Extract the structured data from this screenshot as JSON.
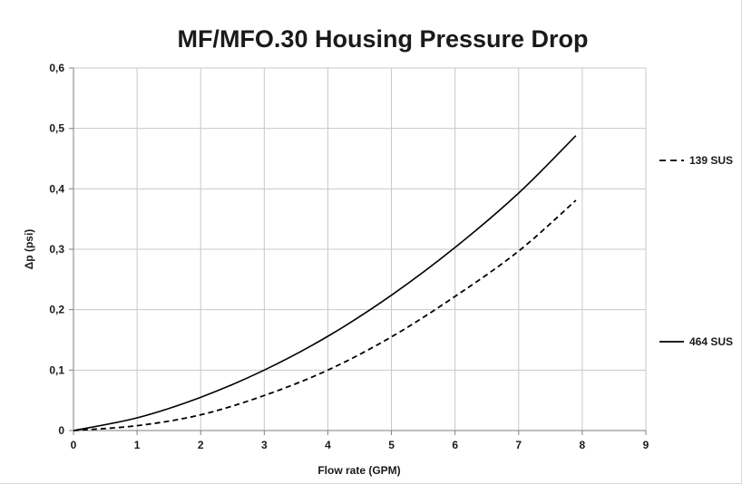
{
  "chart_data": {
    "type": "line",
    "title": "MF/MFO.30 Housing Pressure Drop",
    "xlabel": "Flow rate (GPM)",
    "ylabel": "Δp (psi)",
    "xlim": [
      0,
      9
    ],
    "ylim": [
      0,
      0.6
    ],
    "x_ticks": [
      0,
      1,
      2,
      3,
      4,
      5,
      6,
      7,
      8,
      9
    ],
    "x_tick_labels": [
      "0",
      "1",
      "2",
      "3",
      "4",
      "5",
      "6",
      "7",
      "8",
      "9"
    ],
    "y_ticks": [
      0,
      0.1,
      0.2,
      0.3,
      0.4,
      0.5,
      0.6
    ],
    "y_tick_labels": [
      "0",
      "0,1",
      "0,2",
      "0,3",
      "0,4",
      "0,5",
      "0,6"
    ],
    "grid": true,
    "legend_position": "right",
    "series": [
      {
        "name": "139 SUS",
        "line_style": "dashed",
        "color": "#000000",
        "x": [
          0,
          1,
          2,
          3,
          4,
          5,
          6,
          7,
          7.9
        ],
        "y": [
          0,
          0.008,
          0.026,
          0.058,
          0.1,
          0.155,
          0.222,
          0.297,
          0.381
        ]
      },
      {
        "name": "464 SUS",
        "line_style": "solid",
        "color": "#000000",
        "x": [
          0,
          1,
          2,
          3,
          4,
          5,
          6,
          7,
          7.9
        ],
        "y": [
          0,
          0.021,
          0.055,
          0.1,
          0.156,
          0.224,
          0.303,
          0.393,
          0.488
        ]
      }
    ]
  }
}
